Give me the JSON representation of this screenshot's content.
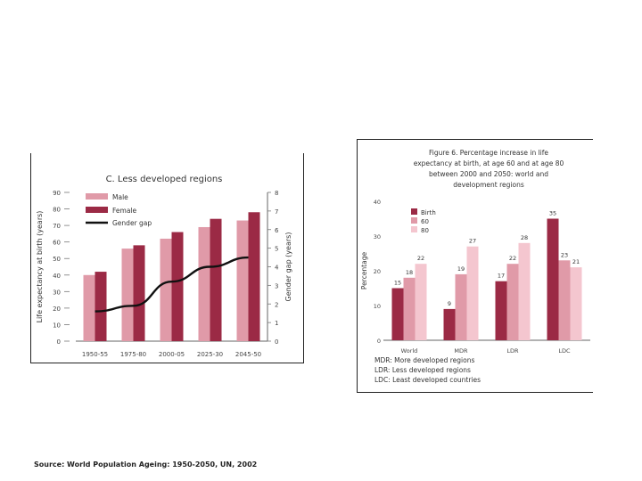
{
  "source_note": "Source: World Population Ageing: 1950-2050, UN, 2002",
  "chart_data": [
    {
      "type": "bar",
      "title": "C. Less developed regions",
      "categories": [
        "1950-55",
        "1975-80",
        "2000-05",
        "2025-30",
        "2045-50"
      ],
      "ylabel": "Life expectancy at birth (years)",
      "y2label": "Gender gap (years)",
      "ylim": [
        0,
        90
      ],
      "y2lim": [
        0,
        8
      ],
      "yticks": [
        "0",
        "10",
        "20",
        "30",
        "40",
        "50",
        "60",
        "70",
        "80",
        "90"
      ],
      "y2ticks": [
        "0",
        "1",
        "2",
        "3",
        "4",
        "5",
        "6",
        "7",
        "8"
      ],
      "series": [
        {
          "name": "Male",
          "kind": "bar",
          "color": "#e09aa8",
          "values": [
            40,
            56,
            62,
            69,
            73
          ]
        },
        {
          "name": "Female",
          "kind": "bar",
          "color": "#9b2a45",
          "values": [
            42,
            58,
            66,
            74,
            78
          ]
        },
        {
          "name": "Gender gap",
          "kind": "line",
          "axis": "right",
          "color": "#111111",
          "values": [
            1.6,
            1.9,
            3.2,
            4.0,
            4.5
          ]
        }
      ],
      "legend_position": "top-left"
    },
    {
      "type": "bar",
      "title": "Figure 6. Percentage increase in life expectancy at birth, at age 60 and at age 80 between 2000 and 2050: world and development regions",
      "title_lines": [
        "Figure 6. Percentage increase in life",
        "expectancy at birth, at age 60 and at age 80",
        "between 2000 and 2050: world and",
        "development regions"
      ],
      "categories": [
        "World",
        "MDR",
        "LDR",
        "LDC"
      ],
      "ylabel": "Percentage",
      "ylim": [
        0,
        40
      ],
      "yticks": [
        "0",
        "10",
        "20",
        "30",
        "40"
      ],
      "series": [
        {
          "name": "Birth",
          "color": "#9b2a45",
          "values": [
            15,
            9,
            17,
            35
          ]
        },
        {
          "name": "60",
          "color": "#e09aa8",
          "values": [
            18,
            19,
            22,
            23
          ]
        },
        {
          "name": "80",
          "color": "#f4c6cf",
          "values": [
            22,
            27,
            28,
            21
          ]
        }
      ],
      "data_labels": [
        [
          "15",
          "18",
          "22"
        ],
        [
          "9",
          "19",
          "27"
        ],
        [
          "17",
          "22",
          "28"
        ],
        [
          "35",
          "23",
          "21"
        ]
      ],
      "legend_position": "top-left",
      "notes": [
        "MDR: More developed regions",
        "LDR: Less developed regions",
        "LDC: Least developed countries"
      ]
    }
  ]
}
